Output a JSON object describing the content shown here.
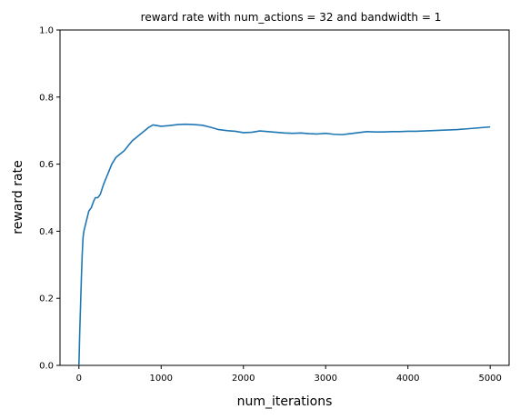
{
  "chart_data": {
    "type": "line",
    "title": "reward rate with num_actions = 32 and bandwidth = 1",
    "xlabel": "num_iterations",
    "ylabel": "reward rate",
    "xlim": [
      -230,
      5230
    ],
    "ylim": [
      0,
      1
    ],
    "xticks": [
      0,
      1000,
      2000,
      3000,
      4000,
      5000
    ],
    "xtick_labels": [
      "0",
      "1000",
      "2000",
      "3000",
      "4000",
      "5000"
    ],
    "yticks": [
      0,
      0.2,
      0.4,
      0.6,
      0.8,
      1.0
    ],
    "ytick_labels": [
      "0.0",
      "0.2",
      "0.4",
      "0.6",
      "0.8",
      "1.0"
    ],
    "grid": false,
    "colors": {
      "line": "#1f77b4"
    },
    "series": [
      {
        "x": [
          0,
          5,
          10,
          20,
          30,
          40,
          50,
          60,
          80,
          100,
          120,
          150,
          180,
          200,
          230,
          260,
          300,
          350,
          400,
          450,
          500,
          550,
          600,
          650,
          700,
          750,
          800,
          850,
          900,
          1000,
          1100,
          1200,
          1300,
          1400,
          1500,
          1600,
          1700,
          1800,
          1900,
          2000,
          2100,
          2200,
          2300,
          2400,
          2500,
          2600,
          2700,
          2800,
          2900,
          3000,
          3100,
          3200,
          3300,
          3400,
          3500,
          3600,
          3700,
          3800,
          3900,
          4000,
          4100,
          4200,
          4300,
          4400,
          4500,
          4600,
          4700,
          4800,
          4900,
          5000
        ],
        "y": [
          0.0,
          0.05,
          0.1,
          0.18,
          0.26,
          0.33,
          0.38,
          0.4,
          0.42,
          0.44,
          0.46,
          0.47,
          0.49,
          0.5,
          0.5,
          0.51,
          0.54,
          0.57,
          0.6,
          0.62,
          0.63,
          0.64,
          0.655,
          0.67,
          0.68,
          0.69,
          0.7,
          0.71,
          0.717,
          0.713,
          0.715,
          0.718,
          0.719,
          0.718,
          0.716,
          0.71,
          0.703,
          0.7,
          0.698,
          0.694,
          0.695,
          0.699,
          0.697,
          0.695,
          0.693,
          0.692,
          0.693,
          0.691,
          0.69,
          0.692,
          0.689,
          0.688,
          0.691,
          0.694,
          0.697,
          0.696,
          0.696,
          0.697,
          0.697,
          0.698,
          0.698,
          0.699,
          0.7,
          0.701,
          0.702,
          0.703,
          0.705,
          0.707,
          0.709,
          0.711
        ]
      }
    ]
  }
}
